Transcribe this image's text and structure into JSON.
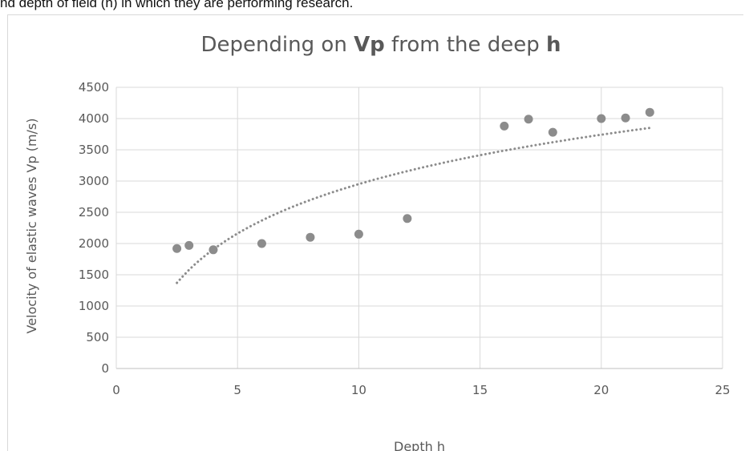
{
  "caption_fragment": "nd depth of field (h) in which they are performing research.",
  "chart_data": {
    "type": "scatter",
    "title_parts": [
      {
        "text": "Depending on ",
        "bold": false
      },
      {
        "text": "Vp",
        "bold": true
      },
      {
        "text": " from the deep ",
        "bold": false
      },
      {
        "text": "h",
        "bold": true
      }
    ],
    "xlabel": "Depth h",
    "ylabel": "Velocity of elastic waves Vp (m/s)",
    "xlim": [
      0,
      25
    ],
    "ylim": [
      0,
      4500
    ],
    "x_ticks": [
      "0",
      "5",
      "10",
      "15",
      "20",
      "25"
    ],
    "y_ticks": [
      "0",
      "500",
      "1000",
      "1500",
      "2000",
      "2500",
      "3000",
      "3500",
      "4000",
      "4500"
    ],
    "grid": true,
    "points": [
      {
        "x": 2.5,
        "y": 1920
      },
      {
        "x": 3,
        "y": 1970
      },
      {
        "x": 4,
        "y": 1900
      },
      {
        "x": 6,
        "y": 2000
      },
      {
        "x": 8,
        "y": 2100
      },
      {
        "x": 10,
        "y": 2150
      },
      {
        "x": 12,
        "y": 2400
      },
      {
        "x": 16,
        "y": 3880
      },
      {
        "x": 17,
        "y": 3990
      },
      {
        "x": 18,
        "y": 3780
      },
      {
        "x": 20,
        "y": 4000
      },
      {
        "x": 21,
        "y": 4010
      },
      {
        "x": 22,
        "y": 4100
      }
    ],
    "trendline": {
      "type": "logarithmic",
      "x_range": [
        2.5,
        22
      ],
      "start_y": 1370,
      "end_y": 3850
    },
    "colors": {
      "points": "#8c8c8c",
      "trendline": "#8c8c8c",
      "grid": "#d9d9d9",
      "text": "#595959"
    }
  }
}
